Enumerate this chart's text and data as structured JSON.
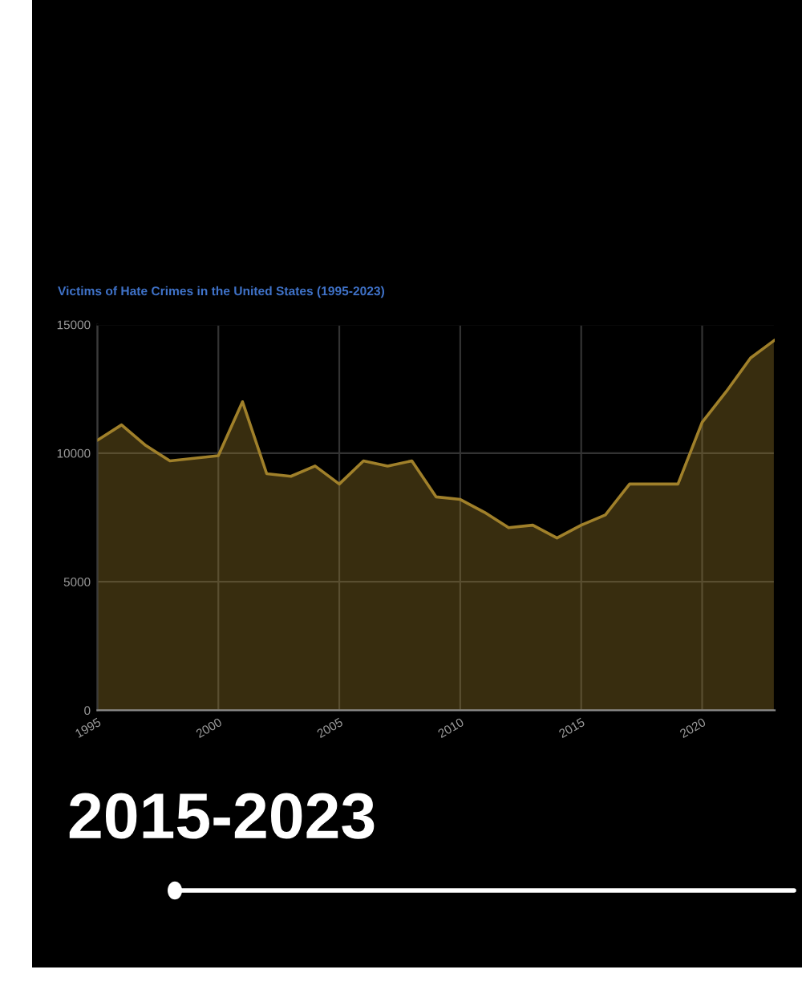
{
  "chart_data": {
    "type": "area",
    "title": "Victims of Hate Crimes in the United States (1995-2023)",
    "x": [
      1995,
      1996,
      1997,
      1998,
      1999,
      2000,
      2001,
      2002,
      2003,
      2004,
      2005,
      2006,
      2007,
      2008,
      2009,
      2010,
      2011,
      2012,
      2013,
      2014,
      2015,
      2016,
      2017,
      2018,
      2019,
      2020,
      2021,
      2022,
      2023
    ],
    "series": [
      {
        "color": "#a0802a",
        "values": [
          10500,
          11100,
          10300,
          9700,
          9800,
          9900,
          12000,
          9200,
          9100,
          9500,
          8800,
          9700,
          9500,
          9700,
          8300,
          8200,
          7700,
          7100,
          7200,
          6700,
          7200,
          7600,
          8800,
          8800,
          8800,
          11200,
          12400,
          13700,
          14400
        ]
      }
    ],
    "xlim": [
      1995,
      2023
    ],
    "xticks": [
      1995,
      2000,
      2005,
      2010,
      2015,
      2020
    ],
    "ylim": [
      0,
      15000
    ],
    "yticks": [
      0,
      5000,
      10000,
      15000
    ],
    "grid": true,
    "annotations": [
      "2015-2023"
    ]
  }
}
